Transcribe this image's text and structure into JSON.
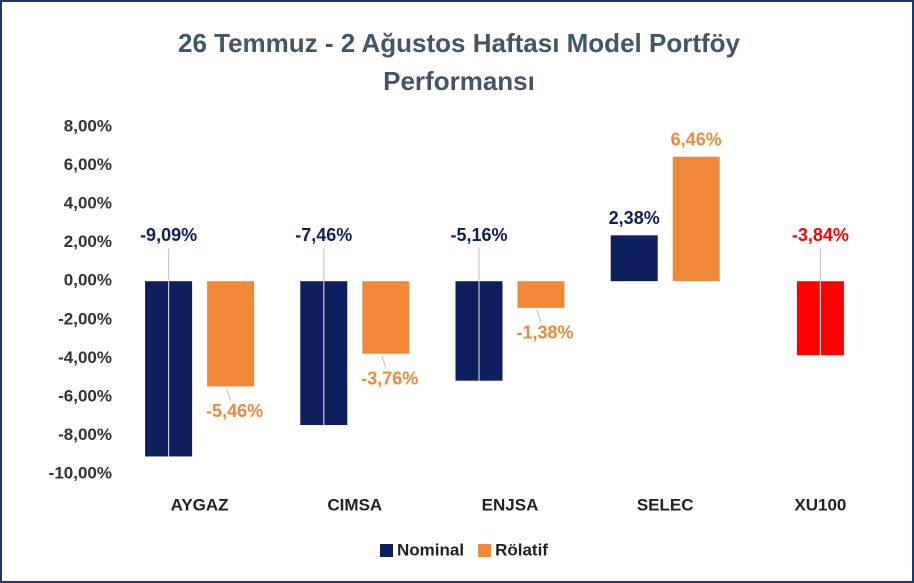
{
  "chart_data": {
    "type": "bar",
    "title": "26 Temmuz - 2 Ağustos Haftası Model Portföy Performansı",
    "categories": [
      "AYGAZ",
      "CIMSA",
      "ENJSA",
      "SELEC",
      "XU100"
    ],
    "series": [
      {
        "name": "Nominal",
        "color": "#0d1f5c",
        "colors": [
          "#0d1f5c",
          "#0d1f5c",
          "#0d1f5c",
          "#0d1f5c",
          "#ff0000"
        ],
        "values": [
          -9.09,
          -7.46,
          -5.16,
          2.38,
          -3.84
        ],
        "value_labels": [
          "-9,09%",
          "-7,46%",
          "-5,16%",
          "2,38%",
          "-3,84%"
        ]
      },
      {
        "name": "Rölatif",
        "color": "#f0883a",
        "values": [
          -5.46,
          -3.76,
          -1.38,
          6.46,
          null
        ],
        "value_labels": [
          "-5,46%",
          "-3,76%",
          "-1,38%",
          "6,46%",
          null
        ]
      }
    ],
    "ylim": [
      -10,
      8
    ],
    "yticks": [
      {
        "value": 8,
        "label": "8,00%"
      },
      {
        "value": 6,
        "label": "6,00%"
      },
      {
        "value": 4,
        "label": "4,00%"
      },
      {
        "value": 2,
        "label": "2,00%"
      },
      {
        "value": 0,
        "label": "0,00%"
      },
      {
        "value": -2,
        "label": "-2,00%"
      },
      {
        "value": -4,
        "label": "-4,00%"
      },
      {
        "value": -6,
        "label": "-6,00%"
      },
      {
        "value": -8,
        "label": "-8,00%"
      },
      {
        "value": -10,
        "label": "-10,00%"
      }
    ],
    "grid": false,
    "legend": "bottom"
  }
}
